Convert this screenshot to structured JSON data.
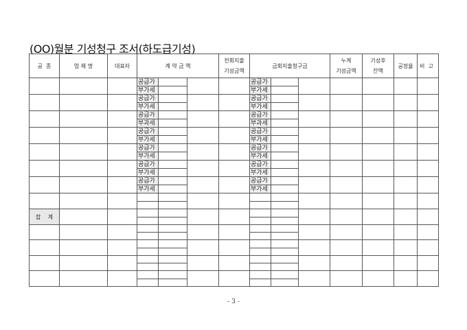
{
  "title": "(OO)월분 기성청구 조서(하도급기성)",
  "headers": {
    "trade": "공  종",
    "company": "업 체 명",
    "representative": "대표자",
    "contract_amount": "계 약 금 액",
    "previous_paid": "전회지출\n기성금액",
    "current_claim": "금회지출청구금",
    "cumulative": "누계\n기성금액",
    "remaining": "기성후\n잔액",
    "progress_rate": "공정율",
    "remarks": "비  고"
  },
  "row_labels": [
    [
      "공급가",
      "부가세"
    ],
    [
      "공급가",
      "부가세"
    ],
    [
      "공급가",
      "부과세"
    ],
    [
      "공급가",
      "부가세"
    ],
    [
      "공급가",
      "부가세"
    ],
    [
      "공급가",
      "부가세"
    ],
    [
      "공급가",
      "부가세"
    ]
  ],
  "total_label": "합    계",
  "page_number": "- 3 -"
}
